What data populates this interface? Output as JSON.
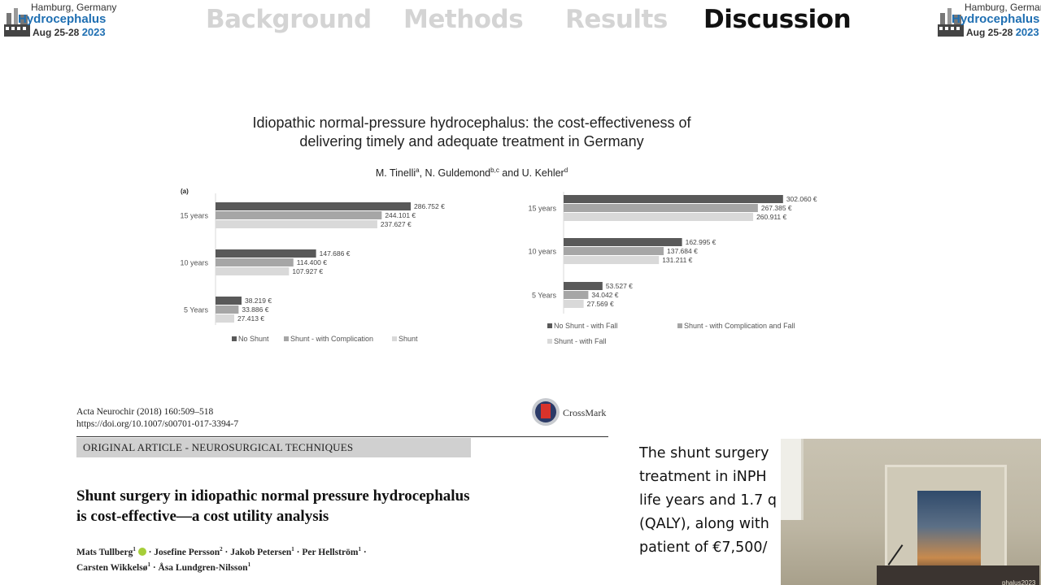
{
  "logo": {
    "city": "Hamburg, Germany",
    "brand": "Hydrocephalus",
    "dates": "Aug 25-28",
    "year": "2023"
  },
  "nav": {
    "items": [
      "Background",
      "Methods",
      "Results",
      "Discussion"
    ],
    "active": "Discussion"
  },
  "paper1": {
    "title_line1": "Idiopathic normal-pressure hydrocephalus: the cost-effectiveness of",
    "title_line2": "delivering timely and adequate treatment in Germany",
    "author1": "M. Tinelli",
    "author1_sup": "a",
    "author2": ", N. Guldemond",
    "author2_sup": "b,c",
    "author3": " and U. Kehler",
    "author3_sup": "d"
  },
  "chart_data": [
    {
      "type": "bar",
      "orientation": "horizontal",
      "panel_label": "(a)",
      "categories": [
        "15 years",
        "10 years",
        "5 Years"
      ],
      "series": [
        {
          "name": "No Shunt",
          "color": "#595959",
          "values": [
            286752,
            147686,
            38219
          ],
          "labels": [
            "286.752 €",
            "147.686 €",
            "38.219 €"
          ]
        },
        {
          "name": "Shunt - with Complication",
          "color": "#a6a6a6",
          "values": [
            244101,
            114400,
            33886
          ],
          "labels": [
            "244.101 €",
            "114.400 €",
            "33.886 €"
          ]
        },
        {
          "name": "Shunt",
          "color": "#d9d9d9",
          "values": [
            237627,
            107927,
            27413
          ],
          "labels": [
            "237.627 €",
            "107.927 €",
            "27.413 €"
          ]
        }
      ],
      "xlim": [
        0,
        300000
      ],
      "legend": "bottom"
    },
    {
      "type": "bar",
      "orientation": "horizontal",
      "categories": [
        "15 years",
        "10 years",
        "5 Years"
      ],
      "series": [
        {
          "name": "No Shunt - with Fall",
          "color": "#595959",
          "values": [
            302060,
            162995,
            53527
          ],
          "labels": [
            "302.060 €",
            "162.995 €",
            "53.527 €"
          ]
        },
        {
          "name": "Shunt  - with Complication and Fall",
          "color": "#a6a6a6",
          "values": [
            267385,
            137684,
            34042
          ],
          "labels": [
            "267.385 €",
            "137.684 €",
            "34.042 €"
          ]
        },
        {
          "name": "Shunt  - with Fall",
          "color": "#d9d9d9",
          "values": [
            260911,
            131211,
            27569
          ],
          "labels": [
            "260.911 €",
            "131.211 €",
            "27.569 €"
          ]
        }
      ],
      "xlim": [
        0,
        300000
      ],
      "legend": "bottom"
    }
  ],
  "paper2": {
    "journal_line1": "Acta Neurochir (2018) 160:509–518",
    "journal_line2": "https://doi.org/10.1007/s00701-017-3394-7",
    "crossmark": "CrossMark",
    "article_type": "ORIGINAL ARTICLE - NEUROSURGICAL TECHNIQUES",
    "title_line1": "Shunt surgery in idiopathic normal pressure hydrocephalus",
    "title_line2": "is cost-effective—a cost utility analysis",
    "authors_line1_a": "Mats Tullberg",
    "authors_line1_b": " · Josefine Persson",
    "authors_line1_c": " · Jakob Petersen",
    "authors_line1_d": " · Per Hellström",
    "authors_line1_e": " ·",
    "authors_line2_a": "Carsten Wikkelsø",
    "authors_line2_b": " · Åsa Lundgren-Nilsson",
    "sup1": "1",
    "sup2": "2"
  },
  "body_text": {
    "line1": "The shunt surgery",
    "line2": "treatment in iNPH",
    "line3": "life years and 1.7 q",
    "line4": "(QALY), along with",
    "line5": "patient of €7,500/"
  },
  "video": {
    "poster_text": "phalus2023"
  }
}
